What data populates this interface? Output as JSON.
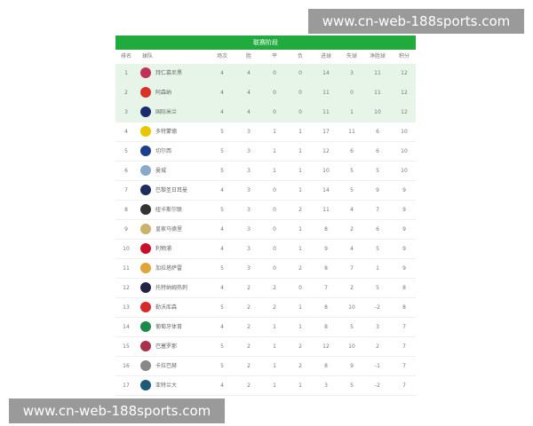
{
  "title": "联赛阶段",
  "headers": [
    "排名",
    "球队",
    "场次",
    "胜",
    "平",
    "负",
    "进球",
    "失球",
    "净胜球",
    "积分"
  ],
  "rows": [
    {
      "rank": "1",
      "team": "拜仁慕尼黑",
      "played": "4",
      "w": "4",
      "d": "0",
      "l": "0",
      "gf": "14",
      "ga": "3",
      "gd": "11",
      "pts": "12",
      "color": "#c0305a"
    },
    {
      "rank": "2",
      "team": "阿森纳",
      "played": "4",
      "w": "4",
      "d": "0",
      "l": "0",
      "gf": "11",
      "ga": "0",
      "gd": "11",
      "pts": "12",
      "color": "#d8312a"
    },
    {
      "rank": "3",
      "team": "国际米兰",
      "played": "4",
      "w": "4",
      "d": "0",
      "l": "0",
      "gf": "11",
      "ga": "1",
      "gd": "10",
      "pts": "12",
      "color": "#1a2a6e"
    },
    {
      "rank": "4",
      "team": "多特蒙德",
      "played": "5",
      "w": "3",
      "d": "1",
      "l": "1",
      "gf": "17",
      "ga": "11",
      "gd": "6",
      "pts": "10",
      "color": "#e8c600"
    },
    {
      "rank": "5",
      "team": "切尔西",
      "played": "5",
      "w": "3",
      "d": "1",
      "l": "1",
      "gf": "12",
      "ga": "6",
      "gd": "6",
      "pts": "10",
      "color": "#1c3f8c"
    },
    {
      "rank": "6",
      "team": "曼城",
      "played": "5",
      "w": "3",
      "d": "1",
      "l": "1",
      "gf": "10",
      "ga": "5",
      "gd": "5",
      "pts": "10",
      "color": "#8aa9c9"
    },
    {
      "rank": "7",
      "team": "巴黎圣日耳曼",
      "played": "4",
      "w": "3",
      "d": "0",
      "l": "1",
      "gf": "14",
      "ga": "5",
      "gd": "9",
      "pts": "9",
      "color": "#1a2d5e"
    },
    {
      "rank": "8",
      "team": "纽卡斯尔联",
      "played": "5",
      "w": "3",
      "d": "0",
      "l": "2",
      "gf": "11",
      "ga": "4",
      "gd": "7",
      "pts": "9",
      "color": "#333333"
    },
    {
      "rank": "9",
      "team": "皇家马德里",
      "played": "4",
      "w": "3",
      "d": "0",
      "l": "1",
      "gf": "8",
      "ga": "2",
      "gd": "6",
      "pts": "9",
      "color": "#c9b26a"
    },
    {
      "rank": "10",
      "team": "利物浦",
      "played": "4",
      "w": "3",
      "d": "0",
      "l": "1",
      "gf": "9",
      "ga": "4",
      "gd": "5",
      "pts": "9",
      "color": "#c8102e"
    },
    {
      "rank": "11",
      "team": "加拉塔萨雷",
      "played": "5",
      "w": "3",
      "d": "0",
      "l": "2",
      "gf": "8",
      "ga": "7",
      "gd": "1",
      "pts": "9",
      "color": "#e0a43a"
    },
    {
      "rank": "12",
      "team": "托特纳姆热刺",
      "played": "4",
      "w": "2",
      "d": "2",
      "l": "0",
      "gf": "7",
      "ga": "2",
      "gd": "5",
      "pts": "8",
      "color": "#222244"
    },
    {
      "rank": "13",
      "team": "勒沃库森",
      "played": "5",
      "w": "2",
      "d": "2",
      "l": "1",
      "gf": "8",
      "ga": "10",
      "gd": "-2",
      "pts": "8",
      "color": "#d52a2a"
    },
    {
      "rank": "14",
      "team": "葡萄牙体育",
      "played": "4",
      "w": "2",
      "d": "1",
      "l": "1",
      "gf": "8",
      "ga": "5",
      "gd": "3",
      "pts": "7",
      "color": "#1c8a4a"
    },
    {
      "rank": "15",
      "team": "巴塞罗那",
      "played": "5",
      "w": "2",
      "d": "1",
      "l": "2",
      "gf": "12",
      "ga": "10",
      "gd": "2",
      "pts": "7",
      "color": "#a8324a"
    },
    {
      "rank": "16",
      "team": "卡拉巴赫",
      "played": "5",
      "w": "2",
      "d": "1",
      "l": "2",
      "gf": "8",
      "ga": "9",
      "gd": "-1",
      "pts": "7",
      "color": "#888888"
    },
    {
      "rank": "17",
      "team": "亚特兰大",
      "played": "4",
      "w": "2",
      "d": "1",
      "l": "1",
      "gf": "3",
      "ga": "5",
      "gd": "-2",
      "pts": "7",
      "color": "#1d5a7a"
    }
  ],
  "watermark_top": "www.cn-web-188sports.com",
  "watermark_bottom": "www.cn-web-188sports.com",
  "accent": "#21aa3e"
}
